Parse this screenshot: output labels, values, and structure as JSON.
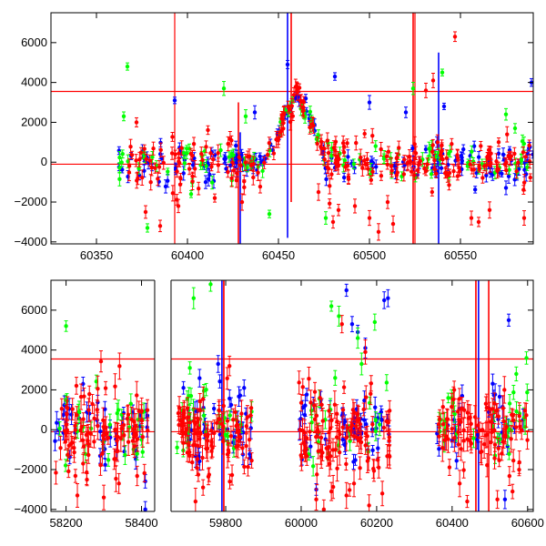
{
  "chart_data": [
    {
      "type": "scatter",
      "panel": "top",
      "title": "",
      "xlabel": "",
      "ylabel": "",
      "xlim": [
        60325,
        60590
      ],
      "ylim": [
        -4100,
        7500
      ],
      "x_ticks": [
        "60350",
        "60400",
        "60450",
        "60500",
        "60550"
      ],
      "y_ticks": [
        "−4000",
        "−2000",
        "0",
        "2000",
        "4000",
        "6000"
      ],
      "hlines": [
        3550,
        -100
      ],
      "vlines": [
        60393,
        60525
      ],
      "vlines_gap": [],
      "grid": false,
      "series": [
        {
          "color": "#0000ff",
          "x_range": [
            60362,
            60590
          ],
          "center": 0,
          "spread": 450,
          "n": 160,
          "err": 250,
          "outliers": [
            [
              60393,
              3100
            ],
            [
              60455,
              4900
            ],
            [
              60481,
              4300
            ],
            [
              60500,
              3000
            ],
            [
              60520,
              2500
            ],
            [
              60541,
              2800
            ],
            [
              60589,
              4000
            ],
            [
              60437,
              2500
            ],
            [
              60465,
              3200
            ],
            [
              60410,
              -1000
            ]
          ]
        },
        {
          "color": "#00ff00",
          "x_range": [
            60362,
            60590
          ],
          "center": 0,
          "spread": 500,
          "n": 110,
          "err": 250,
          "outliers": [
            [
              60367,
              4800
            ],
            [
              60365,
              2300
            ],
            [
              60378,
              -3300
            ],
            [
              60420,
              3700
            ],
            [
              60432,
              2300
            ],
            [
              60445,
              -2600
            ],
            [
              60524,
              3700
            ],
            [
              60540,
              4500
            ],
            [
              60575,
              2400
            ],
            [
              60580,
              1700
            ],
            [
              60476,
              -2800
            ],
            [
              60402,
              -1600
            ]
          ]
        },
        {
          "color": "#ff0000",
          "x_range": [
            60366,
            60590
          ],
          "center": 0,
          "spread": 600,
          "n": 240,
          "err": 300,
          "outliers": [
            [
              60372,
              2000
            ],
            [
              60377,
              -2500
            ],
            [
              60385,
              -3200
            ],
            [
              60395,
              -2200
            ],
            [
              60415,
              -1800
            ],
            [
              60430,
              -2000
            ],
            [
              60472,
              -1500
            ],
            [
              60480,
              -3000
            ],
            [
              60483,
              -2400
            ],
            [
              60492,
              -2200
            ],
            [
              60500,
              -2800
            ],
            [
              60505,
              -3500
            ],
            [
              60510,
              -2000
            ],
            [
              60513,
              -3100
            ],
            [
              60531,
              3600
            ],
            [
              60535,
              4100
            ],
            [
              60547,
              6300
            ],
            [
              60556,
              -2800
            ],
            [
              60560,
              -3000
            ],
            [
              60566,
              -2400
            ],
            [
              60585,
              -2800
            ]
          ]
        }
      ],
      "features": [
        {
          "x": 60428,
          "y_min": -4100,
          "y_max": 3000,
          "color": "#ff0000"
        },
        {
          "x": 60429,
          "y_min": -4100,
          "y_max": 1500,
          "color": "#0000ff"
        },
        {
          "x": 60455,
          "y_min": -3800,
          "y_max": 7500,
          "color": "#0000ff"
        },
        {
          "x": 60457,
          "y_min": -2000,
          "y_max": 7500,
          "color": "#ff0000"
        },
        {
          "x": 60524,
          "y_min": -4100,
          "y_max": 7500,
          "color": "#ff0000"
        },
        {
          "x": 60538,
          "y_min": -4100,
          "y_max": 5500,
          "color": "#0000ff"
        }
      ],
      "bump": {
        "x_range": [
          60440,
          60475
        ],
        "peak_x": 60460,
        "peak_y": 3500
      }
    },
    {
      "type": "scatter",
      "panel": "bottom",
      "title": "",
      "xlabel": "",
      "ylabel": "",
      "xlim": [
        58160,
        60615
      ],
      "ylim": [
        -4100,
        7500
      ],
      "x_ticks": [
        "58200",
        "58400",
        "59800",
        "60000",
        "60200",
        "60400",
        "60600"
      ],
      "y_ticks": [
        "−4000",
        "−2000",
        "0",
        "2000",
        "4000",
        "6000"
      ],
      "hlines": [
        3550,
        -100
      ],
      "vlines": [
        59795,
        60463
      ],
      "vlines_gap": [],
      "axis_break": {
        "left_x": 58430,
        "right_x": 59660
      },
      "grid": false,
      "segments": [
        {
          "x_range": [
            58170,
            58420
          ]
        },
        {
          "x_range": [
            59670,
            59870
          ]
        },
        {
          "x_range": [
            59990,
            60235
          ]
        },
        {
          "x_range": [
            60360,
            60600
          ]
        }
      ],
      "series": [
        {
          "color": "#0000ff",
          "center": 200,
          "spread": 900,
          "n": 160,
          "err": 400,
          "outliers": [
            [
              60120,
              7000
            ],
            [
              60135,
              5300
            ],
            [
              60150,
              4900
            ],
            [
              60170,
              4100
            ],
            [
              60220,
              6500
            ],
            [
              60230,
              6600
            ],
            [
              60550,
              5500
            ],
            [
              58410,
              -4000
            ],
            [
              59780,
              3300
            ],
            [
              60040,
              -3000
            ],
            [
              60540,
              -3500
            ]
          ]
        },
        {
          "color": "#00ff00",
          "center": 200,
          "spread": 950,
          "n": 110,
          "err": 400,
          "outliers": [
            [
              58200,
              5200
            ],
            [
              59715,
              6600
            ],
            [
              59705,
              3100
            ],
            [
              59760,
              7300
            ],
            [
              60080,
              6200
            ],
            [
              60090,
              2600
            ],
            [
              60100,
              5700
            ],
            [
              60150,
              4600
            ],
            [
              60195,
              5400
            ],
            [
              60160,
              3300
            ],
            [
              60570,
              2800
            ],
            [
              60597,
              3600
            ]
          ]
        },
        {
          "color": "#ff0000",
          "center": -100,
          "spread": 1100,
          "n": 380,
          "err": 500,
          "outliers": [
            [
              58230,
              -3300
            ],
            [
              58300,
              -3400
            ],
            [
              58340,
              -2700
            ],
            [
              59720,
              -3600
            ],
            [
              59740,
              -2900
            ],
            [
              59810,
              3200
            ],
            [
              60040,
              -3500
            ],
            [
              60060,
              -4000
            ],
            [
              60080,
              -3100
            ],
            [
              60120,
              -3300
            ],
            [
              60140,
              -2700
            ],
            [
              60180,
              -3800
            ],
            [
              60215,
              -3200
            ],
            [
              60108,
              5300
            ],
            [
              60170,
              3900
            ],
            [
              60420,
              -2700
            ],
            [
              60440,
              -3600
            ],
            [
              60520,
              -3500
            ],
            [
              60560,
              -3100
            ]
          ]
        }
      ],
      "features": [
        {
          "x": 59795,
          "y_min": -4100,
          "y_max": 7500,
          "color": "#ff0000"
        },
        {
          "x": 59790,
          "y_min": -4100,
          "y_max": 7500,
          "color": "#0000ff"
        },
        {
          "x": 60463,
          "y_min": -4100,
          "y_max": 7500,
          "color": "#ff0000"
        },
        {
          "x": 60470,
          "y_min": -4100,
          "y_max": 7500,
          "color": "#0000ff"
        },
        {
          "x": 60497,
          "y_min": -4100,
          "y_max": 7500,
          "color": "#ff0000"
        }
      ]
    }
  ]
}
